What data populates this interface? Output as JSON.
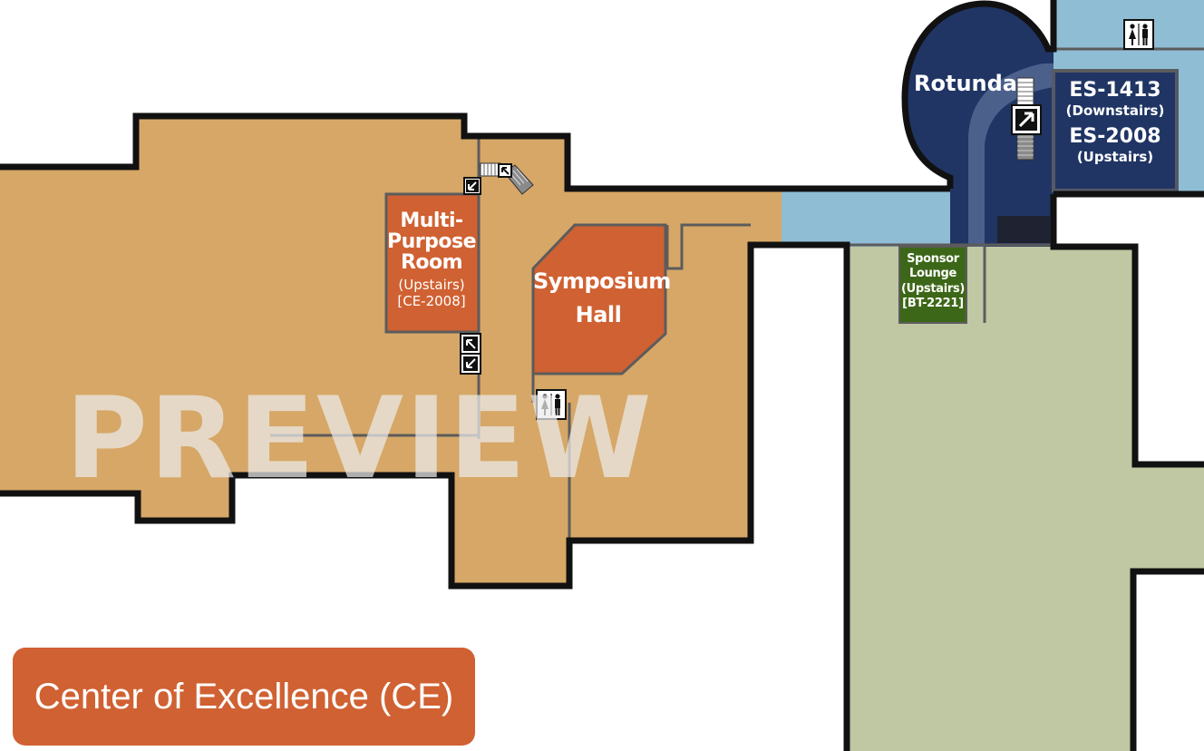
{
  "colors": {
    "ce_floor": "#d6a767",
    "room_orange": "#d06132",
    "bt_floor": "#bfc7a3",
    "sponsor_green": "#3d6718",
    "es_corridor": "#8fbdd4",
    "rotunda_navy": "#203564",
    "wall": "#111111"
  },
  "rooms": {
    "multi_purpose": {
      "line1": "Multi-",
      "line2": "Purpose",
      "line3": "Room",
      "floor": "(Upstairs)",
      "code": "[CE-2008]"
    },
    "symposium": {
      "line1": "Symposium",
      "line2": "Hall"
    },
    "rotunda": {
      "name": "Rotunda"
    },
    "es_rooms": {
      "a_code": "ES-1413",
      "a_floor": "(Downstairs)",
      "b_code": "ES-2008",
      "b_floor": "(Upstairs)"
    },
    "sponsor": {
      "line1": "Sponsor",
      "line2": "Lounge",
      "floor": "(Upstairs)",
      "code": "[BT-2221]"
    }
  },
  "icons": {
    "restroom": "restroom-icon",
    "stairs": "stairs-icon",
    "elevator_up": "arrow-up-right-icon",
    "escalator_down": "arrow-down-left-icon",
    "escalator_up": "arrow-up-left-icon"
  },
  "watermark": "PREVIEW",
  "building": {
    "label": "Center of Excellence (CE)"
  }
}
